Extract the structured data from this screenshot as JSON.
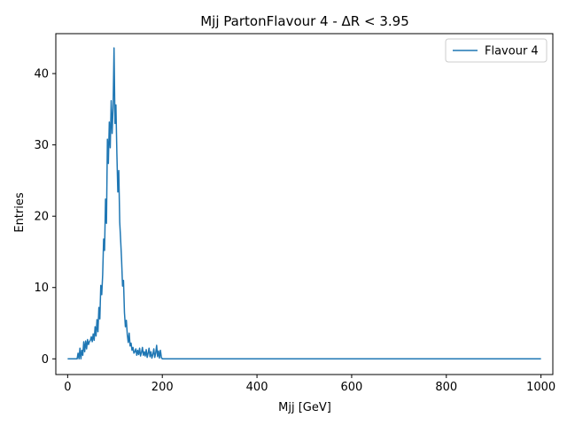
{
  "chart_data": {
    "type": "line",
    "title": "Mjj PartonFlavour 4 - ΔR < 3.95",
    "xlabel": "Mjj [GeV]",
    "ylabel": "Entries",
    "xlim": [
      -25,
      1025
    ],
    "ylim": [
      -2.2,
      45.6
    ],
    "xticks": [
      0,
      200,
      400,
      600,
      800,
      1000
    ],
    "xtick_labels": [
      "0",
      "200",
      "400",
      "600",
      "800",
      "1000"
    ],
    "yticks": [
      0,
      10,
      20,
      30,
      40
    ],
    "ytick_labels": [
      "0",
      "10",
      "20",
      "30",
      "40"
    ],
    "grid": false,
    "legend_position": "top-right",
    "series": [
      {
        "name": "Flavour 4",
        "color": "#1f77b4",
        "x": [
          0,
          20,
          22,
          24,
          26,
          28,
          30,
          32,
          34,
          36,
          38,
          40,
          42,
          44,
          46,
          48,
          50,
          52,
          54,
          56,
          58,
          60,
          62,
          64,
          66,
          68,
          70,
          72,
          74,
          76,
          78,
          80,
          82,
          84,
          86,
          88,
          90,
          92,
          94,
          96,
          98,
          100,
          102,
          104,
          106,
          108,
          110,
          112,
          114,
          116,
          118,
          120,
          122,
          124,
          126,
          128,
          130,
          132,
          134,
          136,
          138,
          140,
          142,
          144,
          146,
          148,
          150,
          152,
          154,
          156,
          158,
          160,
          162,
          164,
          166,
          168,
          170,
          172,
          174,
          176,
          178,
          180,
          182,
          184,
          186,
          188,
          190,
          192,
          194,
          196,
          198,
          200,
          1000
        ],
        "y": [
          0,
          0,
          0.8,
          0,
          1.5,
          0,
          1.2,
          0.5,
          2.4,
          1.0,
          2.5,
          1.4,
          2.7,
          2.0,
          2.4,
          2.6,
          3.1,
          2.4,
          3.5,
          2.6,
          4.5,
          3.2,
          5.5,
          3.8,
          7.2,
          5.6,
          10.3,
          9.0,
          11.8,
          16.8,
          15.2,
          22.4,
          19.0,
          30.8,
          27.4,
          33.2,
          29.6,
          36.2,
          31.6,
          35.2,
          43.6,
          33.0,
          35.6,
          28.8,
          23.4,
          26.4,
          19.2,
          16.6,
          13.8,
          10.2,
          11.0,
          6.5,
          4.5,
          5.4,
          3.4,
          2.3,
          3.6,
          1.8,
          2.2,
          1.2,
          1.6,
          0.8,
          1.0,
          1.4,
          0.5,
          1.2,
          0.6,
          1.5,
          0.4,
          0.9,
          1.6,
          0.5,
          1.0,
          0.4,
          1.3,
          0.2,
          0.8,
          1.5,
          0.3,
          1.0,
          0.1,
          0.6,
          1.4,
          0.2,
          0.8,
          1.9,
          0.3,
          1.1,
          0.1,
          1.2,
          0.2,
          0,
          0
        ]
      }
    ]
  }
}
